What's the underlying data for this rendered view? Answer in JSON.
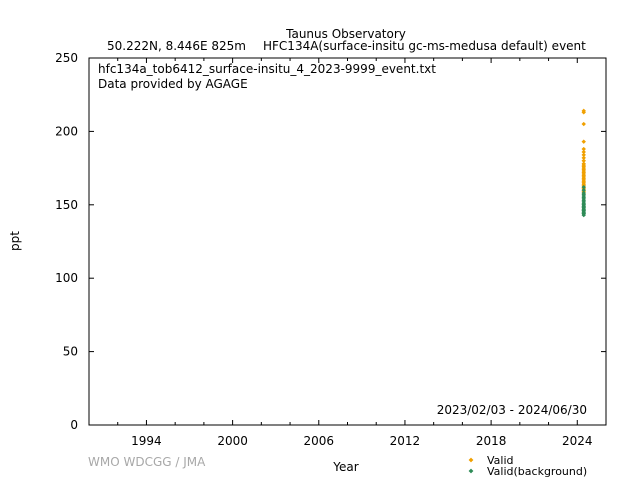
{
  "header": {
    "station": "Taunus Observatory",
    "location": "50.222N, 8.446E 825m",
    "dataset": "HFC134A(surface-insitu gc-ms-medusa default) event"
  },
  "chart_data": {
    "type": "scatter",
    "file_label": "hfc134a_tob6412_surface-insitu_4_2023-9999_event.txt",
    "provider_label": "Data provided by AGAGE",
    "date_range_label": "2023/02/03 - 2024/06/30",
    "watermark": "WMO WDCGG / JMA",
    "xlabel": "Year",
    "ylabel": "ppt",
    "xlim": [
      1990.0,
      2026.0
    ],
    "ylim": [
      0,
      250
    ],
    "x_ticks": [
      1994,
      2000,
      2006,
      2012,
      2018,
      2024
    ],
    "y_ticks": [
      0,
      50,
      100,
      150,
      200,
      250
    ],
    "legend_position": "bottom-right, below plot",
    "series": [
      {
        "name": "Valid",
        "color": "#f0a000",
        "x": [
          2024.45,
          2024.45,
          2024.45,
          2024.45,
          2024.45,
          2024.45,
          2024.45,
          2024.45,
          2024.45,
          2024.45,
          2024.45,
          2024.45,
          2024.45,
          2024.45,
          2024.45,
          2024.45,
          2024.45,
          2024.45,
          2024.45,
          2024.45,
          2024.45,
          2024.45,
          2024.45,
          2024.45,
          2024.45,
          2024.45,
          2024.45,
          2024.45,
          2024.45,
          2024.45
        ],
        "y": [
          214,
          213,
          205,
          193,
          188,
          186,
          184,
          182,
          180,
          178,
          177,
          176,
          175,
          174,
          173,
          172,
          171,
          170,
          169,
          168,
          167,
          166,
          165,
          164,
          163,
          162,
          161,
          160,
          159,
          158
        ]
      },
      {
        "name": "Valid(background)",
        "color": "#2e8b57",
        "x": [
          2024.45,
          2024.45,
          2024.45,
          2024.45,
          2024.45,
          2024.45,
          2024.45,
          2024.45,
          2024.45,
          2024.45,
          2024.45,
          2024.45,
          2024.45,
          2024.45,
          2024.45,
          2024.45,
          2024.45,
          2024.45,
          2024.45,
          2024.45,
          2024.45,
          2024.45,
          2024.45,
          2024.45,
          2024.45
        ],
        "y": [
          162,
          160,
          158,
          157,
          156,
          155,
          154,
          153,
          152,
          151,
          150,
          150,
          149,
          149,
          148,
          148,
          147,
          147,
          146,
          146,
          145,
          145,
          144,
          144,
          143
        ]
      }
    ]
  }
}
